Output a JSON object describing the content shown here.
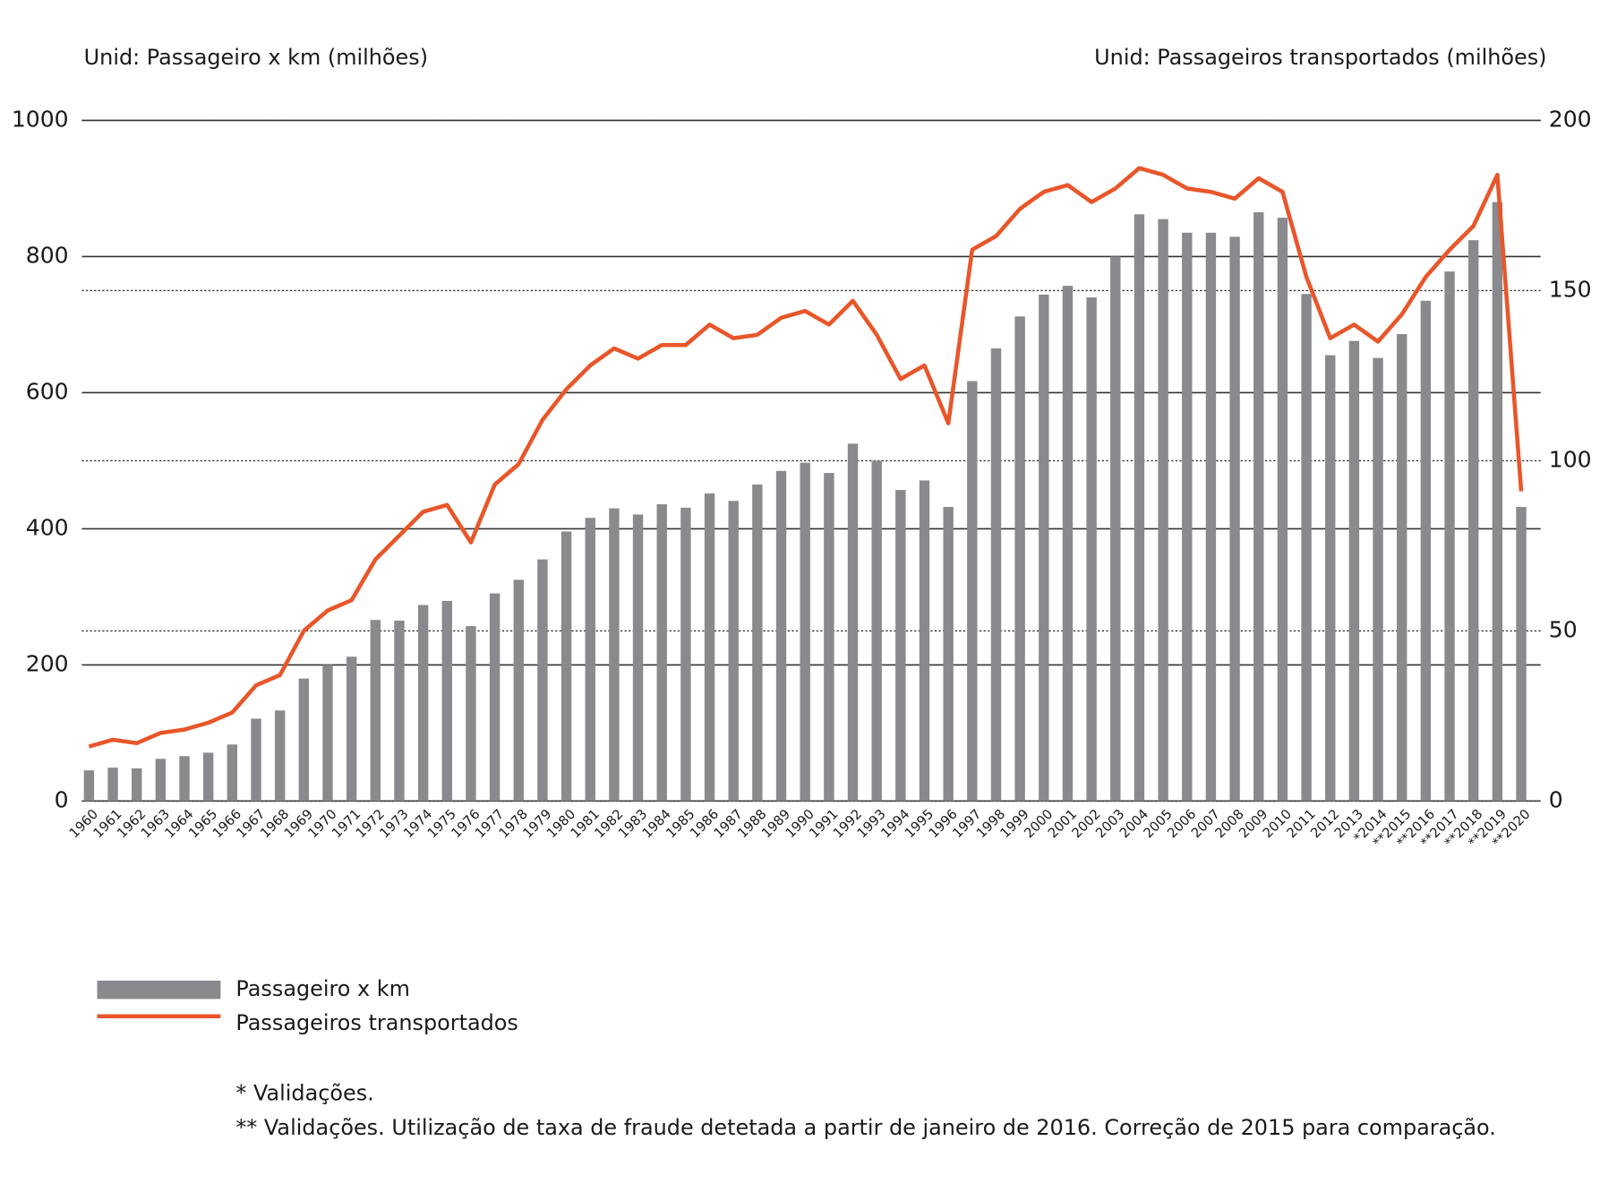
{
  "chart_data": {
    "type": "bar",
    "ylabel": "Unid:  Passageiro x km (milhões)",
    "y2label": "Unid: Passageiros transportados (milhões)",
    "categories": [
      "1960",
      "1961",
      "1962",
      "1963",
      "1964",
      "1965",
      "1966",
      "1967",
      "1968",
      "1969",
      "1970",
      "1971",
      "1972",
      "1973",
      "1974",
      "1975",
      "1976",
      "1977",
      "1978",
      "1979",
      "1980",
      "1981",
      "1982",
      "1983",
      "1984",
      "1985",
      "1986",
      "1987",
      "1988",
      "1989",
      "1990",
      "1991",
      "1992",
      "1993",
      "1994",
      "1995",
      "1996",
      "1997",
      "1998",
      "1999",
      "2000",
      "2001",
      "2002",
      "2003",
      "2004",
      "2005",
      "2006",
      "2007",
      "2008",
      "2009",
      "2010",
      "2011",
      "2012",
      "2013",
      "*2014",
      "**2015",
      "**2016",
      "**2017",
      "**2018",
      "**2019",
      "**2020"
    ],
    "series": [
      {
        "name": "Passageiro x km",
        "type": "bar",
        "color": "#8a898d",
        "values": [
          45,
          49,
          48,
          62,
          66,
          71,
          83,
          121,
          133,
          180,
          200,
          212,
          266,
          265,
          288,
          294,
          257,
          305,
          325,
          355,
          396,
          416,
          430,
          421,
          436,
          431,
          452,
          441,
          465,
          485,
          497,
          482,
          525,
          500,
          457,
          471,
          432,
          617,
          665,
          712,
          744,
          757,
          740,
          800,
          862,
          855,
          835,
          835,
          829,
          865,
          857,
          745,
          655,
          676,
          651,
          686,
          735,
          778,
          824,
          880,
          432
        ]
      },
      {
        "name": "Passageiros transportados",
        "type": "line",
        "color": "#e8562a",
        "axis": "y2",
        "values": [
          16,
          18,
          17,
          20,
          21,
          23,
          26,
          34,
          37,
          50,
          56,
          59,
          71,
          78,
          85,
          87,
          76,
          93,
          99,
          112,
          121,
          128,
          133,
          130,
          134,
          134,
          140,
          136,
          137,
          142,
          144,
          140,
          147,
          137,
          124,
          128,
          111,
          162,
          166,
          174,
          179,
          181,
          176,
          180,
          186,
          184,
          180,
          179,
          177,
          183,
          179,
          154,
          136,
          140,
          135,
          143,
          154,
          162,
          169,
          184,
          91
        ]
      }
    ],
    "ylim": [
      0,
      1000
    ],
    "yticks": [
      0,
      200,
      400,
      600,
      800,
      1000
    ],
    "y2lim": [
      0,
      200
    ],
    "y2ticks": [
      0,
      50,
      100,
      150,
      200
    ],
    "grid": true,
    "notes": [
      "* Validações.",
      "** Validações. Utilização de taxa de fraude detetada a partir de janeiro de 2016. Correção de 2015 para comparação."
    ]
  }
}
